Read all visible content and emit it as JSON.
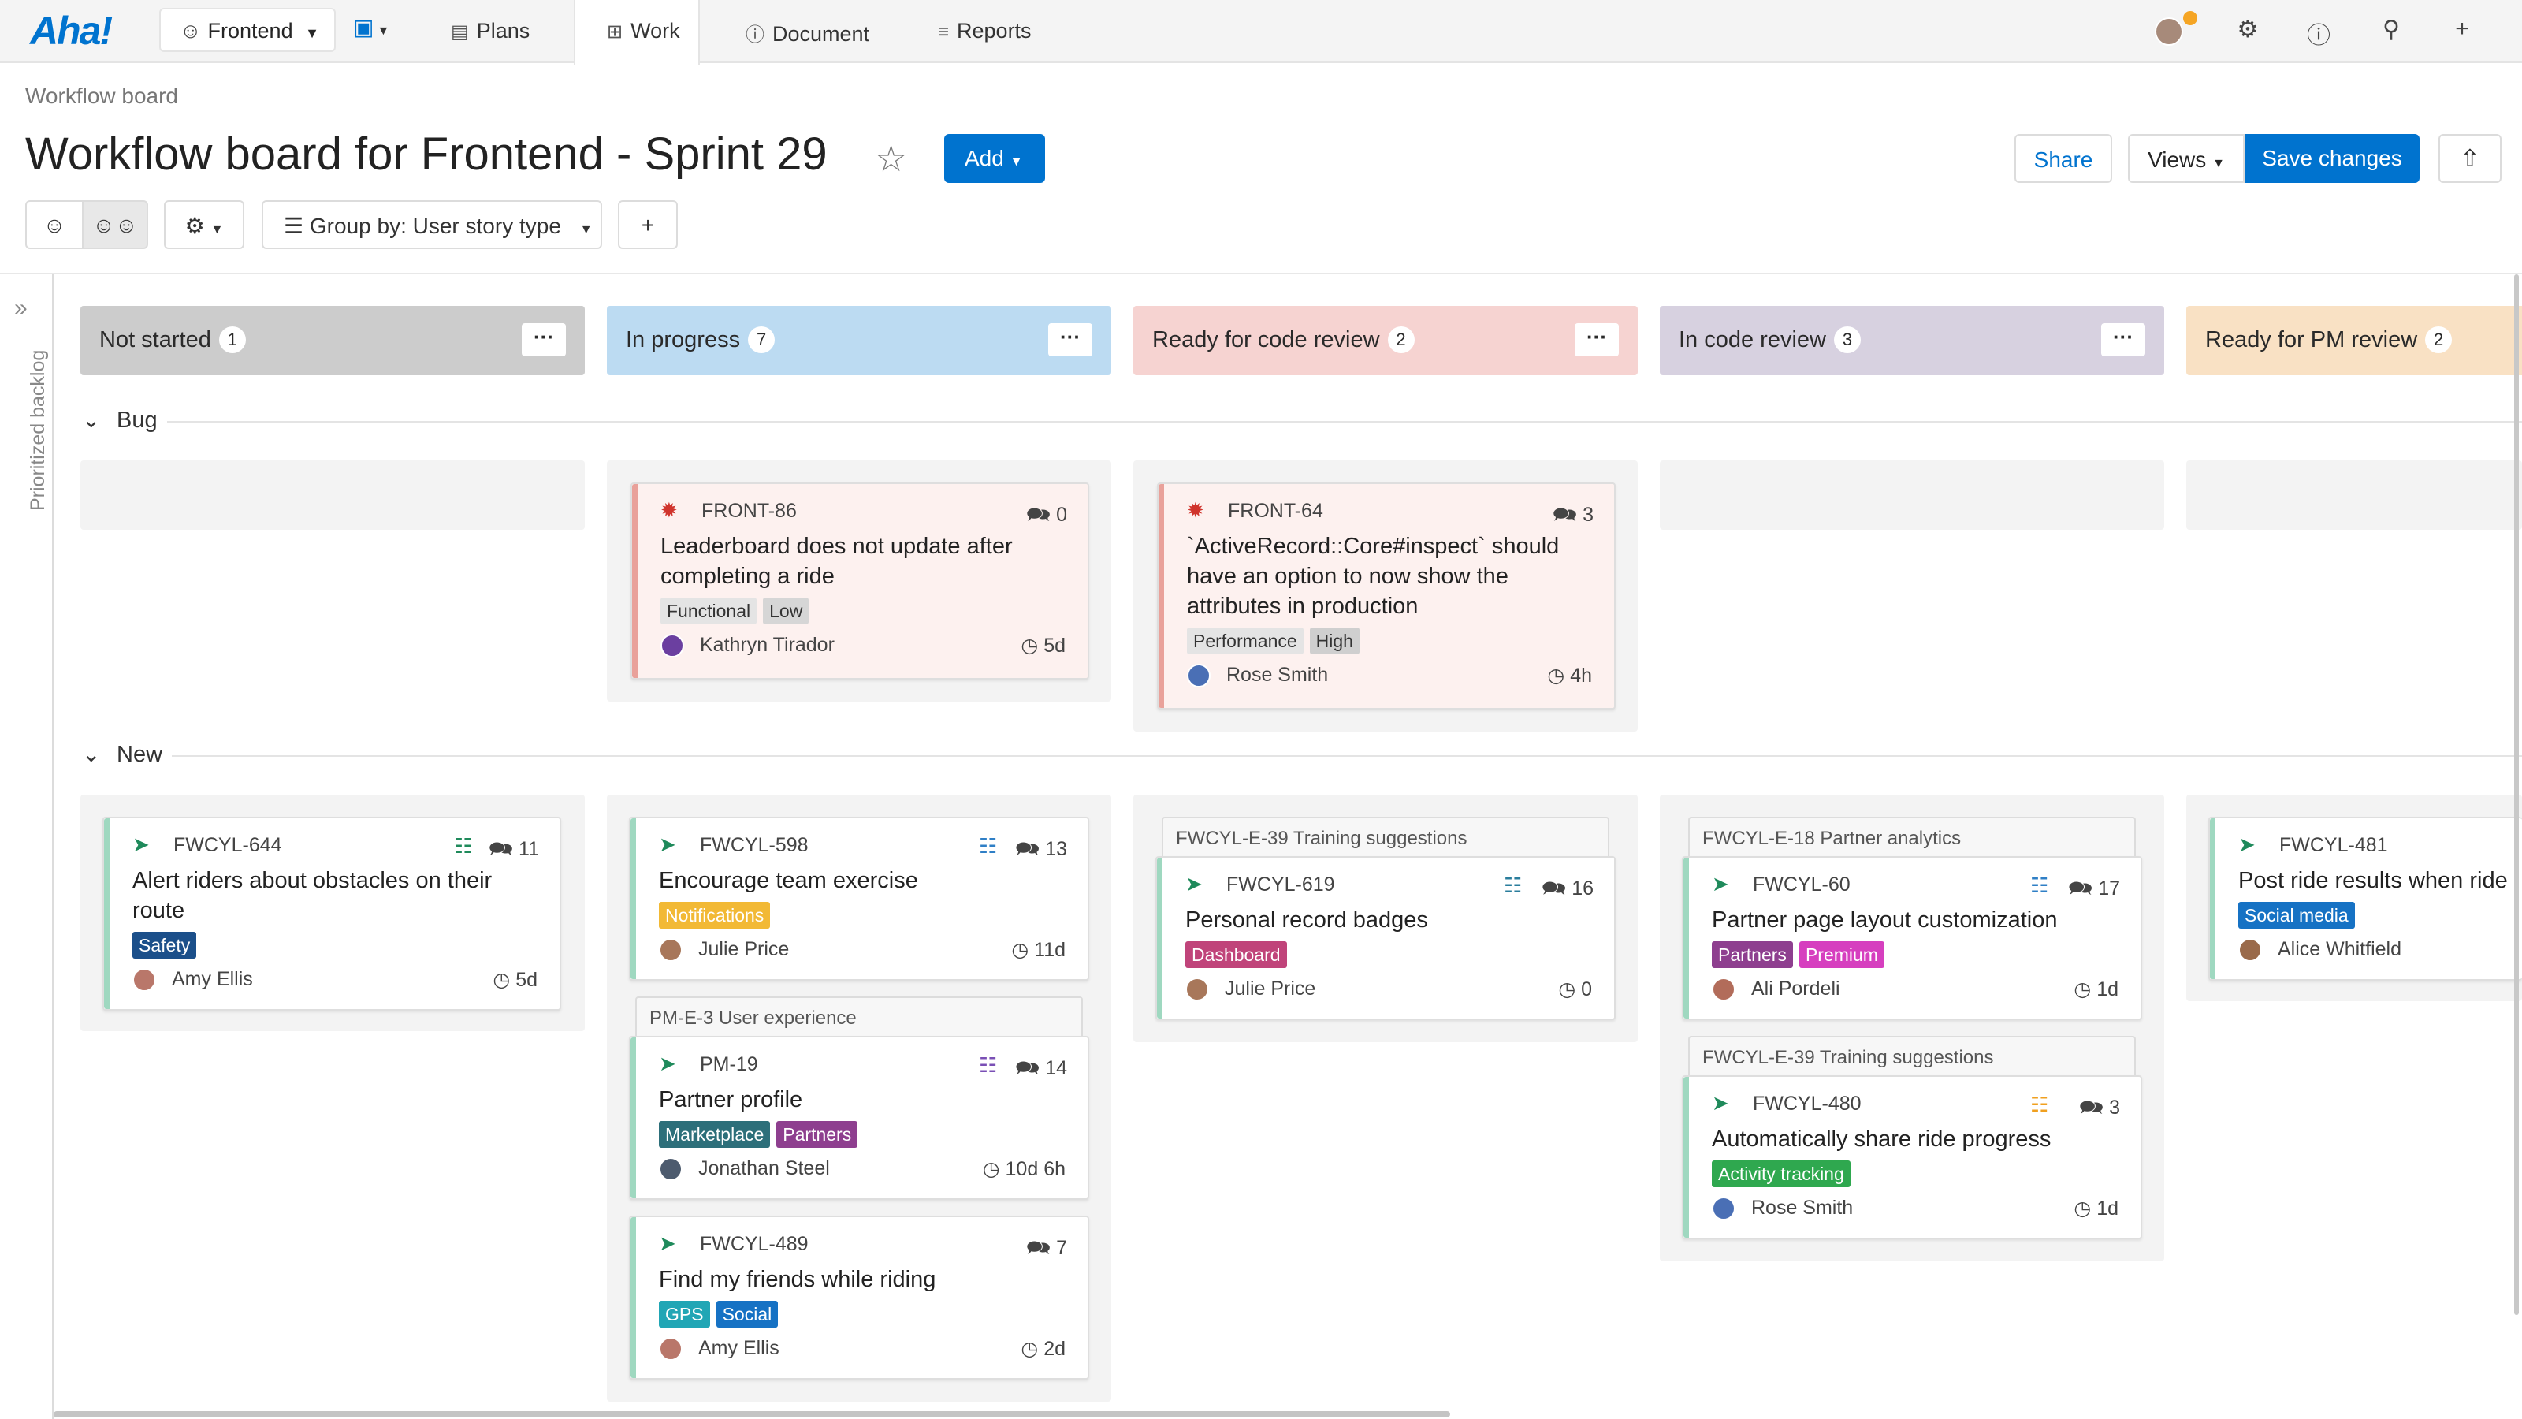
{
  "nav": {
    "logo": "Aha!",
    "workspace": "Frontend",
    "tabs": [
      {
        "label": "Plans",
        "icon": "plans-icon"
      },
      {
        "label": "Work",
        "icon": "work-icon",
        "active": true
      },
      {
        "label": "Document",
        "icon": "document-icon"
      },
      {
        "label": "Reports",
        "icon": "reports-icon"
      }
    ]
  },
  "header": {
    "breadcrumb": "Workflow board",
    "title": "Workflow board for Frontend - Sprint 29",
    "add_label": "Add",
    "share_label": "Share",
    "views_label": "Views",
    "save_label": "Save changes"
  },
  "toolbar": {
    "group_by_label": "Group by: User story type",
    "add_symbol": "+"
  },
  "sidebar": {
    "label": "Prioritized backlog"
  },
  "columns": [
    {
      "name": "Not started",
      "count": "1",
      "color": "#cccccc"
    },
    {
      "name": "In progress",
      "count": "7",
      "color": "#bcdbf2"
    },
    {
      "name": "Ready for code review",
      "count": "2",
      "color": "#f6d3d1"
    },
    {
      "name": "In code review",
      "count": "3",
      "color": "#d7d1e0"
    },
    {
      "name": "Ready for PM review",
      "count": "2",
      "color": "#f9e1c4"
    }
  ],
  "more_symbol": "···",
  "groups": {
    "bug": "Bug",
    "new": "New"
  },
  "cards": [
    {
      "id": "FRONT-86",
      "comments": "0",
      "title": "Leaderboard does not update after completing a ride",
      "tags": [
        "Functional",
        "Low"
      ],
      "assignee": "Kathryn Tirador",
      "estimate": "5d"
    },
    {
      "id": "FRONT-64",
      "comments": "3",
      "title": "`ActiveRecord::Core#inspect` should have an option to now show the attributes in production",
      "tags": [
        "Performance",
        "High"
      ],
      "assignee": "Rose Smith",
      "estimate": "4h"
    },
    {
      "id": "FWCYL-644",
      "comments": "11",
      "title": "Alert riders about obstacles on their route",
      "tags": [
        "Safety"
      ],
      "assignee": "Amy Ellis",
      "estimate": "5d"
    },
    {
      "id": "FWCYL-598",
      "comments": "13",
      "title": "Encourage team exercise",
      "tags": [
        "Notifications"
      ],
      "assignee": "Julie Price",
      "estimate": "11d"
    },
    {
      "epic": "PM-E-3 User experience",
      "id": "PM-19",
      "comments": "14",
      "title": "Partner profile",
      "tags": [
        "Marketplace",
        "Partners"
      ],
      "assignee": "Jonathan Steel",
      "estimate": "10d 6h"
    },
    {
      "id": "FWCYL-489",
      "comments": "7",
      "title": "Find my friends while riding",
      "tags": [
        "GPS",
        "Social"
      ],
      "assignee": "Amy Ellis",
      "estimate": "2d"
    },
    {
      "epic": "FWCYL-E-39 Training suggestions",
      "id": "FWCYL-619",
      "comments": "16",
      "title": "Personal record badges",
      "tags": [
        "Dashboard"
      ],
      "assignee": "Julie Price",
      "estimate": "0"
    },
    {
      "epic": "FWCYL-E-18 Partner analytics",
      "id": "FWCYL-60",
      "comments": "17",
      "title": "Partner page layout customization",
      "tags": [
        "Partners",
        "Premium"
      ],
      "assignee": "Ali Pordeli",
      "estimate": "1d"
    },
    {
      "epic": "FWCYL-E-39 Training suggestions",
      "id": "FWCYL-480",
      "comments": "3",
      "title": "Automatically share ride progress",
      "tags": [
        "Activity tracking"
      ],
      "assignee": "Rose Smith",
      "estimate": "1d"
    },
    {
      "id": "FWCYL-481",
      "title": "Post ride results when ride",
      "tags": [
        "Social media"
      ],
      "assignee": "Alice Whitfield"
    }
  ],
  "colors": {
    "accent": "#0073cf",
    "bug_bar": "#e9a19a",
    "story_bar": "#9fd8c0"
  }
}
